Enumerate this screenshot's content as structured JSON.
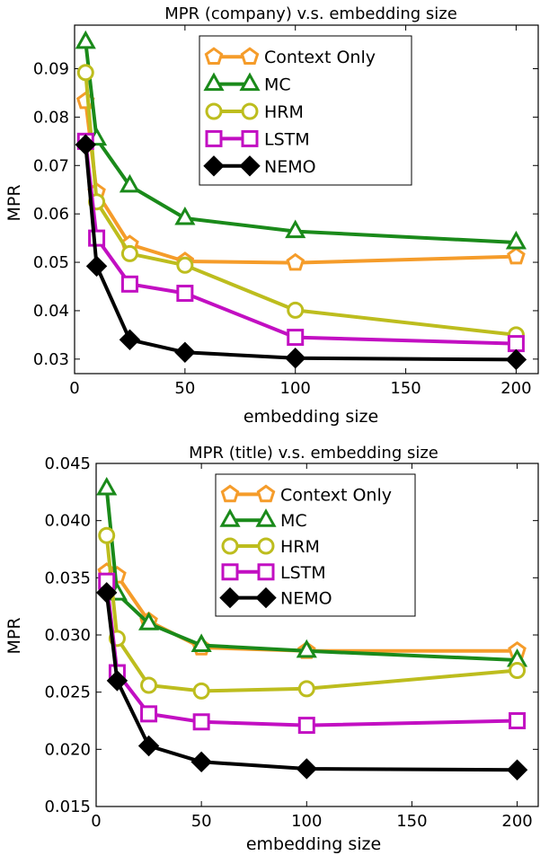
{
  "chart_data": [
    {
      "type": "line",
      "title": "MPR (company) v.s. embedding size",
      "xlabel": "embedding size",
      "ylabel": "MPR",
      "xlim": [
        0,
        210
      ],
      "ylim": [
        0.027,
        0.099
      ],
      "xticks": [
        0,
        50,
        100,
        150,
        200
      ],
      "yticks": [
        0.03,
        0.04,
        0.05,
        0.06,
        0.07,
        0.08,
        0.09
      ],
      "ytick_labels": [
        "0.03",
        "0.04",
        "0.05",
        "0.06",
        "0.07",
        "0.08",
        "0.09"
      ],
      "grid": false,
      "legend": "top-center",
      "x": [
        5,
        10,
        25,
        50,
        100,
        200
      ],
      "series": [
        {
          "name": "Context Only",
          "color": "#f59c2a",
          "marker": "pentagon",
          "values": [
            0.0833,
            0.0645,
            0.0537,
            0.0502,
            0.0499,
            0.0512
          ]
        },
        {
          "name": "MC",
          "color": "#1a8a1a",
          "marker": "triangle",
          "values": [
            0.0955,
            0.0755,
            0.0658,
            0.0591,
            0.0564,
            0.0541
          ]
        },
        {
          "name": "HRM",
          "color": "#bdbd1e",
          "marker": "circle",
          "values": [
            0.0892,
            0.0625,
            0.0518,
            0.0494,
            0.0401,
            0.035
          ]
        },
        {
          "name": "LSTM",
          "color": "#c20fc2",
          "marker": "square",
          "values": [
            0.075,
            0.055,
            0.0455,
            0.0436,
            0.0345,
            0.0332
          ]
        },
        {
          "name": "NEMO",
          "color": "#000000",
          "marker": "diamond",
          "values": [
            0.0743,
            0.0492,
            0.034,
            0.0314,
            0.0302,
            0.0299
          ]
        }
      ]
    },
    {
      "type": "line",
      "title": "MPR (title) v.s. embedding size",
      "xlabel": "embedding size",
      "ylabel": "MPR",
      "xlim": [
        0,
        210
      ],
      "ylim": [
        0.015,
        0.045
      ],
      "xticks": [
        0,
        50,
        100,
        150,
        200
      ],
      "yticks": [
        0.015,
        0.02,
        0.025,
        0.03,
        0.035,
        0.04,
        0.045
      ],
      "ytick_labels": [
        "0.015",
        "0.020",
        "0.025",
        "0.030",
        "0.035",
        "0.040",
        "0.045"
      ],
      "grid": false,
      "legend": "top-center",
      "x": [
        5,
        10,
        25,
        50,
        100,
        200
      ],
      "series": [
        {
          "name": "Context Only",
          "color": "#f59c2a",
          "marker": "pentagon",
          "values": [
            0.0355,
            0.0352,
            0.0312,
            0.0289,
            0.0286,
            0.0286
          ]
        },
        {
          "name": "MC",
          "color": "#1a8a1a",
          "marker": "triangle",
          "values": [
            0.0428,
            0.0336,
            0.031,
            0.0291,
            0.0286,
            0.0278
          ]
        },
        {
          "name": "HRM",
          "color": "#bdbd1e",
          "marker": "circle",
          "values": [
            0.0387,
            0.0297,
            0.0256,
            0.0251,
            0.0253,
            0.0269
          ]
        },
        {
          "name": "LSTM",
          "color": "#c20fc2",
          "marker": "square",
          "values": [
            0.0347,
            0.0267,
            0.0231,
            0.0224,
            0.0221,
            0.0225
          ]
        },
        {
          "name": "NEMO",
          "color": "#000000",
          "marker": "diamond",
          "values": [
            0.0337,
            0.026,
            0.0203,
            0.0189,
            0.0183,
            0.0182
          ]
        }
      ]
    }
  ]
}
